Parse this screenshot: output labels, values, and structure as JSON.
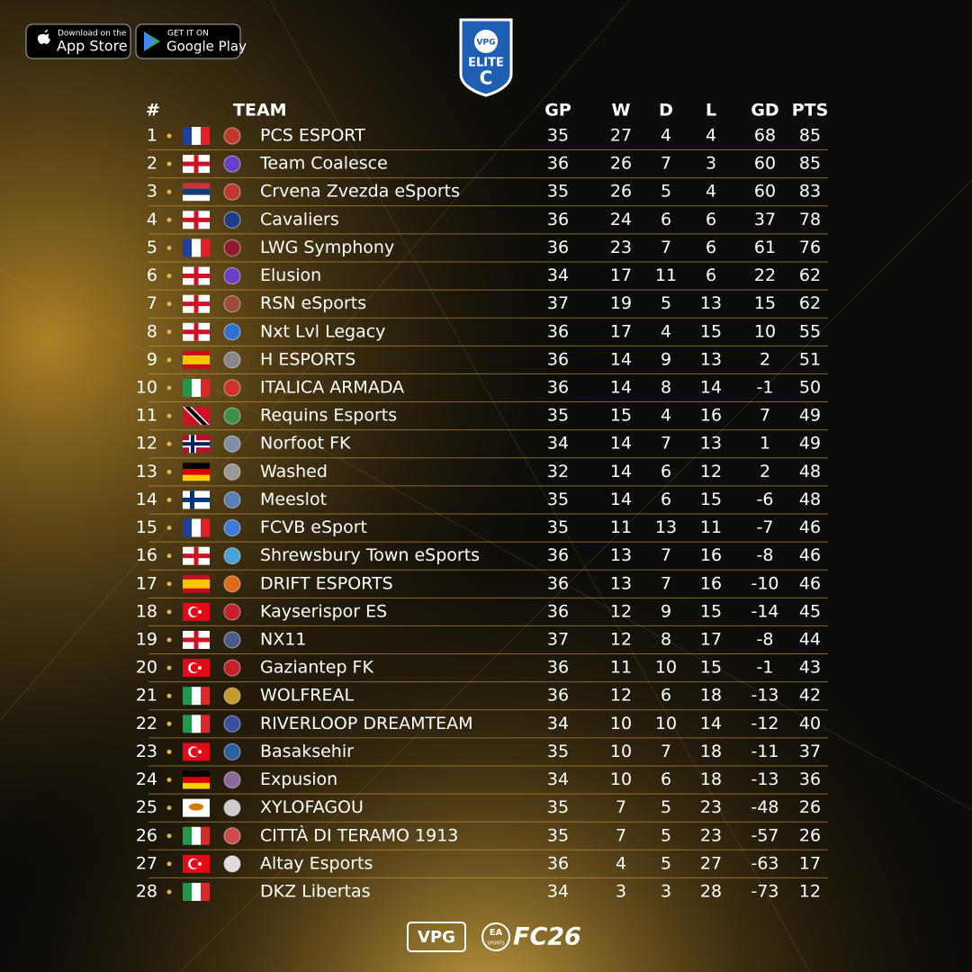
{
  "header": {
    "app_store": {
      "small": "Download on the",
      "big": "App Store"
    },
    "google_play": {
      "small": "GET IT ON",
      "big": "Google Play"
    },
    "badge": {
      "brand": "VPG",
      "tier": "ELITE",
      "division": "C"
    }
  },
  "table": {
    "columns": [
      "#",
      "TEAM",
      "GP",
      "W",
      "D",
      "L",
      "GD",
      "PTS"
    ],
    "rows": [
      [
        1,
        "PCS ESPORT",
        35,
        27,
        4,
        4,
        68,
        85
      ],
      [
        2,
        "Team Coalesce",
        36,
        26,
        7,
        3,
        60,
        85
      ],
      [
        3,
        "Crvena Zvezda eSports",
        35,
        26,
        5,
        4,
        60,
        83
      ],
      [
        4,
        "Cavaliers",
        36,
        24,
        6,
        6,
        37,
        78
      ],
      [
        5,
        "LWG Symphony",
        36,
        23,
        7,
        6,
        61,
        76
      ],
      [
        6,
        "Elusion",
        34,
        17,
        11,
        6,
        22,
        62
      ],
      [
        7,
        "RSN eSports",
        37,
        19,
        5,
        13,
        15,
        62
      ],
      [
        8,
        "Nxt Lvl Legacy",
        36,
        17,
        4,
        15,
        10,
        55
      ],
      [
        9,
        "H ESPORTS",
        36,
        14,
        9,
        13,
        2,
        51
      ],
      [
        10,
        "ITALICA ARMADA",
        36,
        14,
        8,
        14,
        -1,
        50
      ],
      [
        11,
        "Requins Esports",
        35,
        15,
        4,
        16,
        7,
        49
      ],
      [
        12,
        "Norfoot FK",
        34,
        14,
        7,
        13,
        1,
        49
      ],
      [
        13,
        "Washed",
        32,
        14,
        6,
        12,
        2,
        48
      ],
      [
        14,
        "Meeslot",
        35,
        14,
        6,
        15,
        -6,
        48
      ],
      [
        15,
        "FCVB eSport",
        35,
        11,
        13,
        11,
        -7,
        46
      ],
      [
        16,
        "Shrewsbury Town eSports",
        36,
        13,
        7,
        16,
        -8,
        46
      ],
      [
        17,
        "DRIFT ESPORTS",
        36,
        13,
        7,
        16,
        -10,
        46
      ],
      [
        18,
        "Kayserispor ES",
        36,
        12,
        9,
        15,
        -14,
        45
      ],
      [
        19,
        "NX11",
        37,
        12,
        8,
        17,
        -8,
        44
      ],
      [
        20,
        "Gaziantep FK",
        36,
        11,
        10,
        15,
        -1,
        43
      ],
      [
        21,
        "WOLFREAL",
        36,
        12,
        6,
        18,
        -13,
        42
      ],
      [
        22,
        "RIVERLOOP DREAMTEAM",
        34,
        10,
        10,
        14,
        -12,
        40
      ],
      [
        23,
        "Basaksehir",
        35,
        10,
        7,
        18,
        -11,
        37
      ],
      [
        24,
        "Expusion",
        34,
        10,
        6,
        18,
        -13,
        36
      ],
      [
        25,
        "XYLOFAGOU",
        35,
        7,
        5,
        23,
        -48,
        26
      ],
      [
        26,
        "CITTÀ DI TERAMO 1913",
        35,
        7,
        5,
        23,
        -57,
        26
      ],
      [
        27,
        "Altay Esports",
        36,
        4,
        5,
        27,
        -63,
        17
      ],
      [
        28,
        "DKZ Libertas",
        34,
        3,
        3,
        28,
        -73,
        12
      ]
    ]
  },
  "footer": {
    "brand": "VPG",
    "ea": "EA",
    "sports": "SPORTS",
    "game": "FC26"
  }
}
